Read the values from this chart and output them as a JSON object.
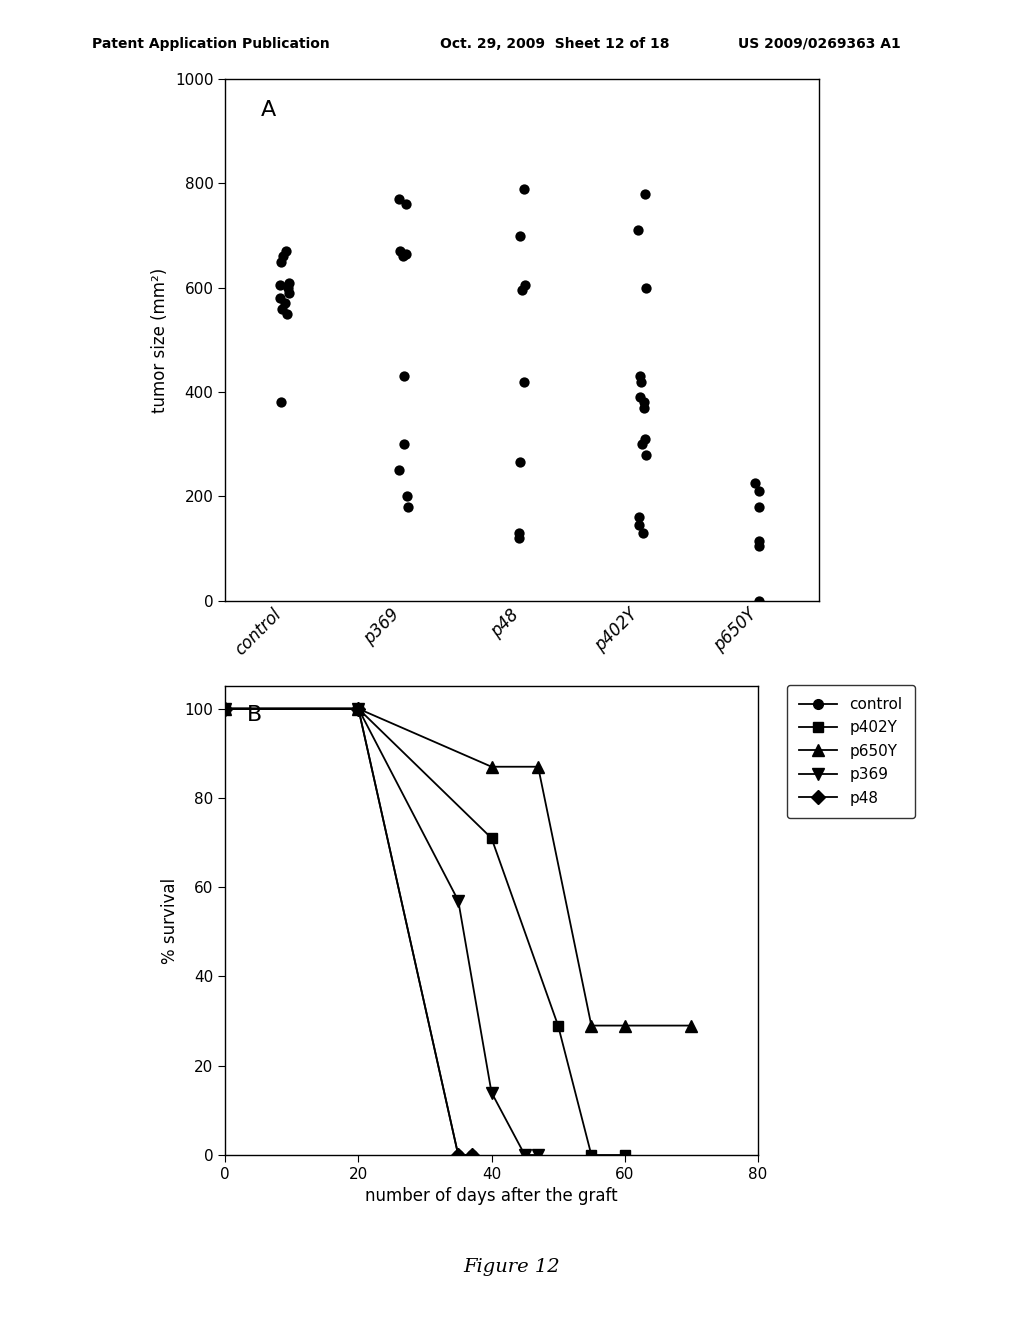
{
  "panel_a": {
    "label": "A",
    "ylabel": "tumor size (mm²)",
    "ylim": [
      0,
      1000
    ],
    "yticks": [
      0,
      200,
      400,
      600,
      800,
      1000
    ],
    "categories": [
      "control",
      "p369",
      "p48",
      "p402Y",
      "p650Y"
    ],
    "data": {
      "control": [
        380,
        550,
        560,
        570,
        580,
        590,
        600,
        605,
        610,
        650,
        660,
        670
      ],
      "p369": [
        180,
        200,
        250,
        300,
        430,
        660,
        665,
        670,
        760,
        770
      ],
      "p48": [
        120,
        130,
        265,
        420,
        595,
        605,
        700,
        790
      ],
      "p402Y": [
        130,
        145,
        160,
        280,
        300,
        310,
        370,
        380,
        390,
        420,
        430,
        600,
        710,
        780
      ],
      "p650Y": [
        0,
        105,
        115,
        180,
        210,
        225
      ]
    }
  },
  "panel_b": {
    "label": "B",
    "ylabel": "% survival",
    "xlabel": "number of days after the graft",
    "xlim": [
      0,
      80
    ],
    "ylim": [
      0,
      105
    ],
    "yticks": [
      0,
      20,
      40,
      60,
      80,
      100
    ],
    "xticks": [
      0,
      20,
      40,
      60,
      80
    ],
    "series": {
      "control": {
        "x": [
          0,
          20,
          35,
          37
        ],
        "y": [
          100,
          100,
          0,
          0
        ],
        "marker": "o",
        "label": "control"
      },
      "p402Y": {
        "x": [
          0,
          20,
          40,
          50,
          55,
          60
        ],
        "y": [
          100,
          100,
          71,
          29,
          0,
          0
        ],
        "marker": "s",
        "label": "p402Y"
      },
      "p650Y": {
        "x": [
          0,
          20,
          40,
          47,
          55,
          60,
          70
        ],
        "y": [
          100,
          100,
          87,
          87,
          29,
          29,
          29
        ],
        "marker": "^",
        "label": "p650Y"
      },
      "p369": {
        "x": [
          0,
          20,
          35,
          40,
          45,
          47
        ],
        "y": [
          100,
          100,
          57,
          14,
          0,
          0
        ],
        "marker": "v",
        "label": "p369"
      },
      "p48": {
        "x": [
          0,
          20,
          35,
          37
        ],
        "y": [
          100,
          100,
          0,
          0
        ],
        "marker": "D",
        "label": "p48"
      }
    },
    "legend_order": [
      "control",
      "p402Y",
      "p650Y",
      "p369",
      "p48"
    ]
  },
  "header": {
    "left": "Patent Application Publication",
    "center": "Oct. 29, 2009  Sheet 12 of 18",
    "right": "US 2009/0269363 A1"
  },
  "footer": "Figure 12",
  "bg_color": "#ffffff"
}
